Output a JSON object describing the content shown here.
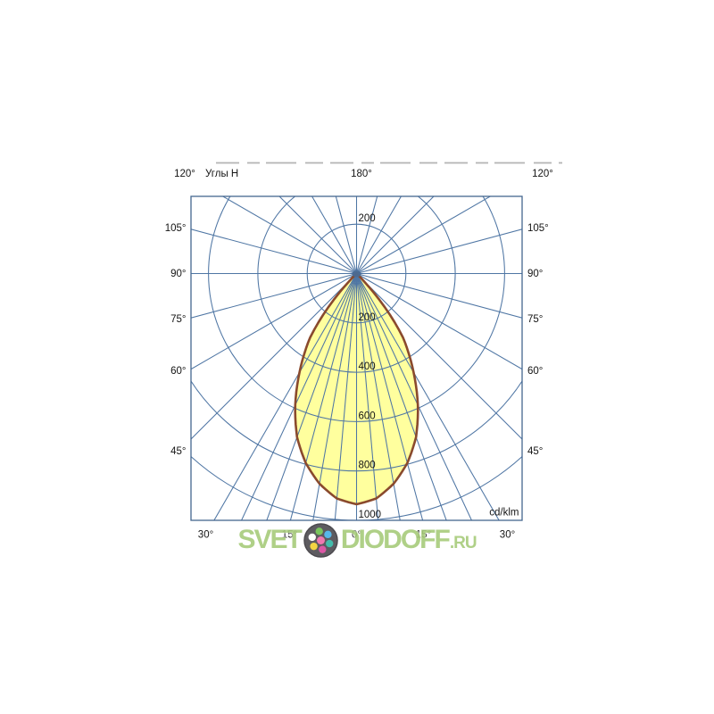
{
  "header": {
    "left": "120°",
    "caption": "Углы H",
    "center": "180°",
    "right": "120°"
  },
  "chart_data": {
    "type": "polar",
    "subtype": "photometric_light_distribution",
    "title": "Углы H",
    "units": "cd/klm",
    "radial_ticks": [
      200,
      400,
      600,
      800,
      1000
    ],
    "radial_axis_max": 1000,
    "angular_grid_step_deg": 15,
    "fine_angular_grid_step_deg": 5,
    "fine_grid_range_deg": 30,
    "side_angle_labels": [
      "105°",
      "90°",
      "75°",
      "60°",
      "45°"
    ],
    "bottom_angle_labels": [
      "30°",
      "15°",
      "0°",
      "15°",
      "30°"
    ],
    "top_angle_label": "180°",
    "grid_color": "#4f76a4",
    "series": [
      {
        "name": "luminous-intensity",
        "symmetric": true,
        "angle_deg": [
          0,
          5,
          10,
          15,
          20,
          25,
          30,
          33,
          36,
          39,
          42,
          44,
          46
        ],
        "intensity_cd_per_klm": [
          935,
          915,
          865,
          795,
          705,
          588,
          462,
          390,
          320,
          215,
          105,
          45,
          0
        ],
        "peak_cd_per_klm": 935,
        "fill": "#ffff9e",
        "stroke": "#8a4a2d"
      }
    ]
  },
  "watermark": {
    "part1": "SVET",
    "part2": "DIODOFF",
    "part3": ".RU",
    "color": "#a7cb7b",
    "logo_bg": "#4c4a4f",
    "logo_center_color": "#ef6aa8",
    "logo_dot_colors": [
      "#6cbf4c",
      "#45b1e8",
      "#2fb5a3",
      "#d9459c",
      "#f1d02f",
      "#ffffff"
    ]
  }
}
